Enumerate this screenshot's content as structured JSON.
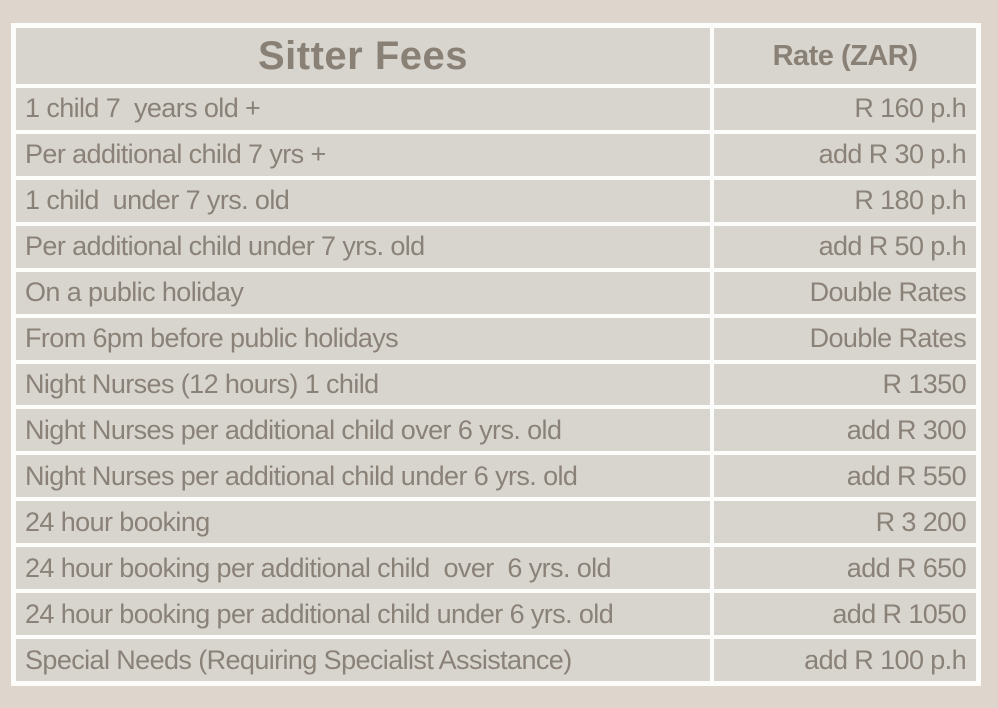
{
  "chart_data": {
    "type": "table",
    "title": "Sitter Fees",
    "columns": [
      "Sitter Fees",
      "Rate (ZAR)"
    ],
    "rows": [
      [
        "1 child 7  years old +",
        "R 160 p.h"
      ],
      [
        "Per additional child 7 yrs +",
        "add R 30 p.h"
      ],
      [
        "1 child  under 7 yrs. old",
        "R 180 p.h"
      ],
      [
        "Per additional child under 7 yrs. old",
        "add R 50 p.h"
      ],
      [
        "On a public holiday",
        "Double Rates"
      ],
      [
        "From 6pm before public holidays",
        "Double Rates"
      ],
      [
        "Night Nurses (12 hours) 1 child",
        "R 1350"
      ],
      [
        "Night Nurses per additional child over 6 yrs. old",
        "add R 300"
      ],
      [
        "Night Nurses per additional child under 6 yrs. old",
        "add R 550"
      ],
      [
        "24 hour booking",
        "R 3 200"
      ],
      [
        "24 hour booking per additional child  over  6 yrs. old",
        "add R 650"
      ],
      [
        "24 hour booking per additional child under 6 yrs. old",
        "add R 1050"
      ],
      [
        "Special Needs (Requiring Specialist Assistance)",
        "add R 100 p.h"
      ]
    ],
    "layout": {
      "header_row": true,
      "rate_alignment": "right",
      "grid_lines": "white"
    }
  },
  "colors": {
    "page_background": "#ded6cc",
    "cell_background": "#d8d5cf",
    "grid_lines": "#fcfcfa",
    "text": "#8a8278",
    "header_text": "#8a8176"
  }
}
